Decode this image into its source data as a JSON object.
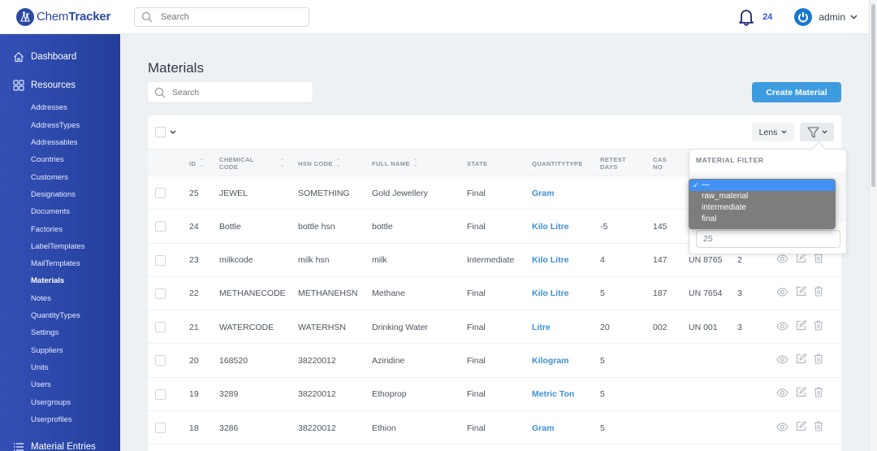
{
  "app": {
    "name_bold": "Chem",
    "name_rest": "Tracker"
  },
  "header": {
    "search_placeholder": "Search",
    "notification_count": "24",
    "user_name": "admin"
  },
  "sidebar": {
    "dashboard": "Dashboard",
    "resources": "Resources",
    "items": [
      "Addresses",
      "AddressTypes",
      "Addressables",
      "Countries",
      "Customers",
      "Designations",
      "Documents",
      "Factories",
      "LabelTemplates",
      "MailTemplates",
      "Materials",
      "Notes",
      "QuantityTypes",
      "Settings",
      "Suppliers",
      "Units",
      "Users",
      "Usergroups",
      "Userprofiles"
    ],
    "active_item": "Materials",
    "material_entries": "Material Entries"
  },
  "page": {
    "title": "Materials",
    "search_placeholder": "Search",
    "create_button": "Create Material",
    "lens_label": "Lens"
  },
  "table": {
    "columns": [
      {
        "label": "ID",
        "sortable": true
      },
      {
        "label": "CHEMICAL CODE",
        "sortable": true
      },
      {
        "label": "HSN CODE",
        "sortable": true
      },
      {
        "label": "FULL NAME",
        "sortable": true
      },
      {
        "label": "STATE",
        "sortable": false
      },
      {
        "label": "QUANTITYTYPE",
        "sortable": false
      },
      {
        "label": "RETEST DAYS",
        "sortable": false
      },
      {
        "label": "CAS NO",
        "sortable": false
      }
    ],
    "col_labels": {
      "id": "ID",
      "chem1": "CHEMICAL",
      "chem2": "CODE",
      "hsn": "HSN CODE",
      "full_name": "FULL NAME",
      "state": "STATE",
      "qty": "QUANTITYTYPE",
      "retest1": "RETEST",
      "retest2": "DAYS",
      "cas1": "CAS",
      "cas2": "NO"
    },
    "rows": [
      {
        "id": "25",
        "chemical_code": "JEWEL",
        "hsn_code": "SOMETHING",
        "full_name": "Gold Jewellery",
        "state": "Final",
        "quantity_type": "Gram",
        "retest_days": "",
        "cas_no": "",
        "un": "",
        "extra": ""
      },
      {
        "id": "24",
        "chemical_code": "Bottle",
        "hsn_code": "bottle hsn",
        "full_name": "bottle",
        "state": "Final",
        "quantity_type": "Kilo Litre",
        "retest_days": "-5",
        "cas_no": "145",
        "un": "",
        "extra": ""
      },
      {
        "id": "23",
        "chemical_code": "milkcode",
        "hsn_code": "milk hsn",
        "full_name": "milk",
        "state": "Intermediate",
        "quantity_type": "Kilo Litre",
        "retest_days": "4",
        "cas_no": "147",
        "un": "UN 8765",
        "extra": "2"
      },
      {
        "id": "22",
        "chemical_code": "METHANECODE",
        "hsn_code": "METHANEHSN",
        "full_name": "Methane",
        "state": "Final",
        "quantity_type": "Kilo Litre",
        "retest_days": "5",
        "cas_no": "187",
        "un": "UN 7654",
        "extra": "3"
      },
      {
        "id": "21",
        "chemical_code": "WATERCODE",
        "hsn_code": "WATERHSN",
        "full_name": "Drinking Water",
        "state": "Final",
        "quantity_type": "Litre",
        "retest_days": "20",
        "cas_no": "002",
        "un": "UN 001",
        "extra": "3"
      },
      {
        "id": "20",
        "chemical_code": "168520",
        "hsn_code": "38220012",
        "full_name": "Aziridine",
        "state": "Final",
        "quantity_type": "Kilogram",
        "retest_days": "5",
        "cas_no": "",
        "un": "",
        "extra": ""
      },
      {
        "id": "19",
        "chemical_code": "3289",
        "hsn_code": "38220012",
        "full_name": "Ethoprop",
        "state": "Final",
        "quantity_type": "Metric Ton",
        "retest_days": "5",
        "cas_no": "",
        "un": "",
        "extra": ""
      },
      {
        "id": "18",
        "chemical_code": "3286",
        "hsn_code": "38220012",
        "full_name": "Ethion",
        "state": "Final",
        "quantity_type": "Gram",
        "retest_days": "5",
        "cas_no": "",
        "un": "",
        "extra": ""
      }
    ]
  },
  "filter_popover": {
    "title": "MATERIAL FILTER",
    "select_options": [
      "—",
      "raw_material",
      "intermediate",
      "final"
    ],
    "selected_option": "—",
    "input_value": "25"
  },
  "colors": {
    "sidebar": "#2b47a8",
    "accent": "#3d9be0",
    "link": "#3d8fd6",
    "dropdown_selected": "#4191f5"
  }
}
